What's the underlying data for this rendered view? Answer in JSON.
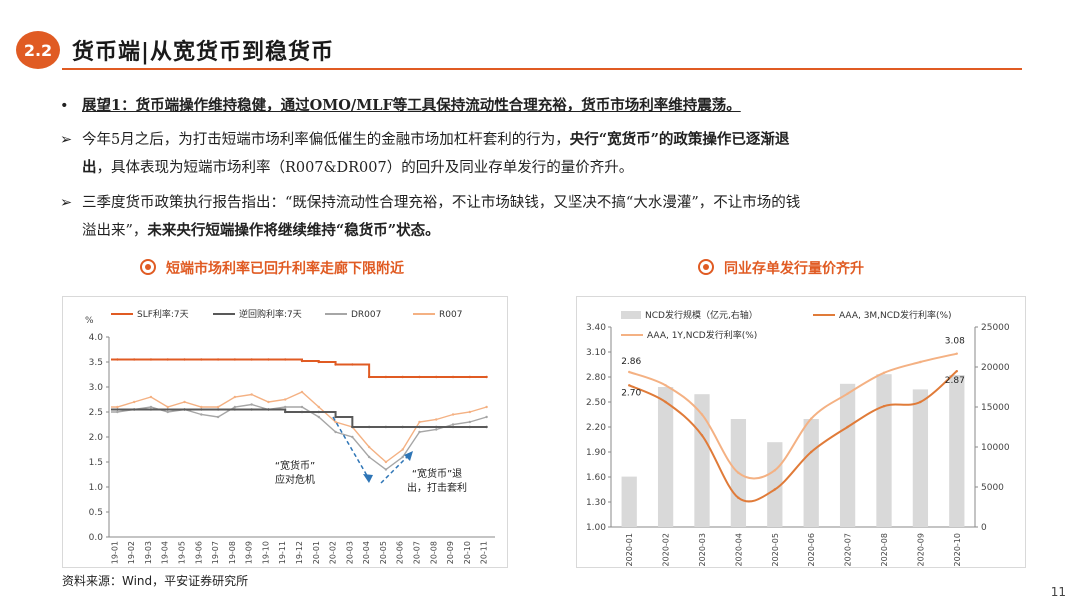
{
  "header": {
    "section_number": "2.2",
    "title": "货币端|从宽货币到稳货币"
  },
  "bullets": [
    {
      "marker": "•",
      "text": "展望1：货币端操作维持稳健，通过OMO/MLF等工具保持流动性合理充裕，货币市场利率维持震荡。"
    },
    {
      "marker": "➢",
      "line1_a": "今年5月之后，为打击短端市场利率偏低催生的金融市场加杠杆套利的行为，",
      "line1_b": "央行“宽货币”的政策操作已逐渐退",
      "line2_a": "出",
      "line2_b": "，具体表现为短端市场利率（R007&DR007）的回升及同业存单发行的量价齐升。"
    },
    {
      "marker": "➢",
      "line1": "三季度货币政策执行报告指出：“既保持流动性合理充裕，不让市场缺钱，又坚决不搞“大水漫灌”，不让市场的钱",
      "line2_a": "溢出来”，",
      "line2_b": "未来央行短端操作将继续维持“稳货币”状态。"
    }
  ],
  "left_chart": {
    "subtitle": "短端市场利率已回升利率走廊下限附近",
    "icon": "target-icon",
    "annotation_1": [
      "“宽货币”",
      "应对危机"
    ],
    "annotation_2": [
      "“宽货币”退",
      "出，打击套利"
    ]
  },
  "right_chart": {
    "subtitle": "同业存单发行量价齐升",
    "icon": "target-icon"
  },
  "chart_data": [
    {
      "type": "line",
      "unit_label": "%",
      "x": [
        "19-01",
        "19-02",
        "19-03",
        "19-04",
        "19-05",
        "19-06",
        "19-07",
        "19-08",
        "19-09",
        "19-10",
        "19-11",
        "19-12",
        "20-01",
        "20-02",
        "20-03",
        "20-04",
        "20-05",
        "20-06",
        "20-07",
        "20-08",
        "20-09",
        "20-10",
        "20-11"
      ],
      "ylim": [
        0,
        4.0
      ],
      "yticks": [
        "0.0",
        "0.5",
        "1.0",
        "1.5",
        "2.0",
        "2.5",
        "3.0",
        "3.5",
        "4.0"
      ],
      "legend_placement": "top",
      "series": [
        {
          "name": "SLF利率:7天",
          "color": "#e05b23",
          "values": [
            3.55,
            3.55,
            3.55,
            3.55,
            3.55,
            3.55,
            3.55,
            3.55,
            3.55,
            3.55,
            3.55,
            3.52,
            3.5,
            3.45,
            3.45,
            3.2,
            3.2,
            3.2,
            3.2,
            3.2,
            3.2,
            3.2,
            3.2
          ]
        },
        {
          "name": "逆回购利率:7天",
          "color": "#595959",
          "values": [
            2.55,
            2.55,
            2.55,
            2.55,
            2.55,
            2.55,
            2.55,
            2.55,
            2.55,
            2.55,
            2.5,
            2.5,
            2.5,
            2.4,
            2.2,
            2.2,
            2.2,
            2.2,
            2.2,
            2.2,
            2.2,
            2.2,
            2.2
          ]
        },
        {
          "name": "DR007",
          "color": "#a6a6a6",
          "values": [
            2.5,
            2.55,
            2.6,
            2.5,
            2.55,
            2.45,
            2.4,
            2.6,
            2.65,
            2.55,
            2.6,
            2.6,
            2.4,
            2.1,
            2.0,
            1.6,
            1.35,
            1.6,
            2.1,
            2.15,
            2.25,
            2.3,
            2.4
          ]
        },
        {
          "name": "R007",
          "color": "#f4b183",
          "values": [
            2.6,
            2.7,
            2.8,
            2.6,
            2.7,
            2.6,
            2.6,
            2.8,
            2.85,
            2.7,
            2.75,
            2.9,
            2.6,
            2.3,
            2.2,
            1.8,
            1.5,
            1.75,
            2.3,
            2.35,
            2.45,
            2.5,
            2.6
          ]
        }
      ]
    },
    {
      "type": "bar",
      "categories": [
        "2020-01",
        "2020-02",
        "2020-03",
        "2020-04",
        "2020-05",
        "2020-06",
        "2020-07",
        "2020-08",
        "2020-09",
        "2020-10"
      ],
      "ylim_left": [
        1.0,
        3.4
      ],
      "ylim_right": [
        0,
        25000
      ],
      "yticks_left": [
        "1.00",
        "1.30",
        "1.60",
        "1.90",
        "2.20",
        "2.50",
        "2.80",
        "3.10",
        "3.40"
      ],
      "yticks_right": [
        "0",
        "5000",
        "10000",
        "15000",
        "20000",
        "25000"
      ],
      "legend_placement": "top",
      "bar_series": {
        "name": "NCD发行规模（亿元,右轴）",
        "color": "#d9d9d9",
        "values": [
          6300,
          17500,
          16600,
          13500,
          10600,
          13500,
          17900,
          19100,
          17200,
          19000
        ]
      },
      "series": [
        {
          "name": "AAA, 3M,NCD发行利率(%)",
          "color": "#e07b39",
          "values": [
            2.7,
            2.5,
            2.1,
            1.35,
            1.45,
            1.9,
            2.2,
            2.45,
            2.5,
            2.87
          ]
        },
        {
          "name": "AAA, 1Y,NCD发行利率(%)",
          "color": "#f4b183",
          "values": [
            2.86,
            2.7,
            2.35,
            1.65,
            1.68,
            2.3,
            2.6,
            2.85,
            2.98,
            3.08
          ]
        }
      ],
      "data_labels": [
        {
          "series": 1,
          "index": 0,
          "text": "2.86"
        },
        {
          "series": 0,
          "index": 0,
          "text": "2.70"
        },
        {
          "series": 1,
          "index": 9,
          "text": "3.08"
        },
        {
          "series": 0,
          "index": 9,
          "text": "2.87"
        }
      ]
    }
  ],
  "footer": {
    "source": "资料来源：Wind，平安证券研究所",
    "page_number": "11"
  }
}
